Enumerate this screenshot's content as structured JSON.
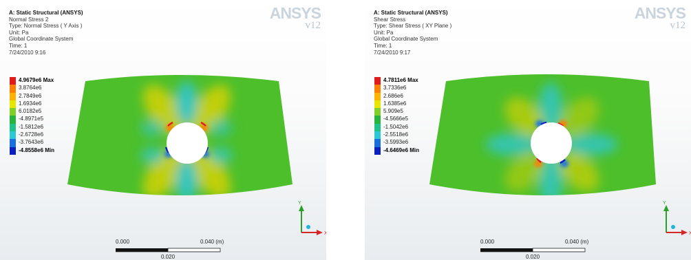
{
  "panels": [
    {
      "header": {
        "title": "A: Static Structural (ANSYS)",
        "result_name": "Normal Stress 2",
        "type_line": "Type: Normal Stress ( Y Axis )",
        "unit_line": "Unit: Pa",
        "coord_line": "Global Coordinate System",
        "time_line": "Time: 1",
        "date_line": "7/24/2010 9:16"
      },
      "logo": {
        "brand": "ANSYS",
        "version": "v12"
      },
      "legend": [
        {
          "label": "4.9679e6 Max",
          "color": "#e31a1c",
          "bold": true
        },
        {
          "label": "3.8764e6",
          "color": "#ff7f00"
        },
        {
          "label": "2.7849e6",
          "color": "#ffb300"
        },
        {
          "label": "1.6934e6",
          "color": "#e6e600"
        },
        {
          "label": "6.0182e5",
          "color": "#7fd12a"
        },
        {
          "label": "-4.8971e5",
          "color": "#27b43c"
        },
        {
          "label": "-1.5812e6",
          "color": "#1fc38a"
        },
        {
          "label": "-2.6728e6",
          "color": "#2ec7d6"
        },
        {
          "label": "-3.7643e6",
          "color": "#1a6fdf"
        },
        {
          "label": "-4.8558e6 Min",
          "color": "#0a1fbf",
          "bold": true
        }
      ],
      "scale_bar": {
        "start": "0.000",
        "end": "0.040 (m)",
        "mid": "0.020"
      },
      "triad": {
        "x": "X",
        "y": "Y"
      }
    },
    {
      "header": {
        "title": "A: Static Structural (ANSYS)",
        "result_name": "Shear Stress",
        "type_line": "Type: Shear Stress ( XY Plane )",
        "unit_line": "Unit: Pa",
        "coord_line": "Global Coordinate System",
        "time_line": "Time: 1",
        "date_line": "7/24/2010 9:17"
      },
      "logo": {
        "brand": "ANSYS",
        "version": "v12"
      },
      "legend": [
        {
          "label": "4.7811e6 Max",
          "color": "#e31a1c",
          "bold": true
        },
        {
          "label": "3.7336e6",
          "color": "#ff7f00"
        },
        {
          "label": "2.686e6",
          "color": "#ffb300"
        },
        {
          "label": "1.6385e6",
          "color": "#e6e600"
        },
        {
          "label": "5.909e5",
          "color": "#7fd12a"
        },
        {
          "label": "-4.5666e5",
          "color": "#27b43c"
        },
        {
          "label": "-1.5042e6",
          "color": "#1fc38a"
        },
        {
          "label": "-2.5518e6",
          "color": "#2ec7d6"
        },
        {
          "label": "-3.5993e6",
          "color": "#1a6fdf"
        },
        {
          "label": "-4.6469e6 Min",
          "color": "#0a1fbf",
          "bold": true
        }
      ],
      "scale_bar": {
        "start": "0.000",
        "end": "0.040 (m)",
        "mid": "0.020"
      },
      "triad": {
        "x": "X",
        "y": "Y"
      }
    }
  ],
  "colors": {
    "plate_green": "#4cbf2a",
    "hole_bg": "#ffffff"
  }
}
